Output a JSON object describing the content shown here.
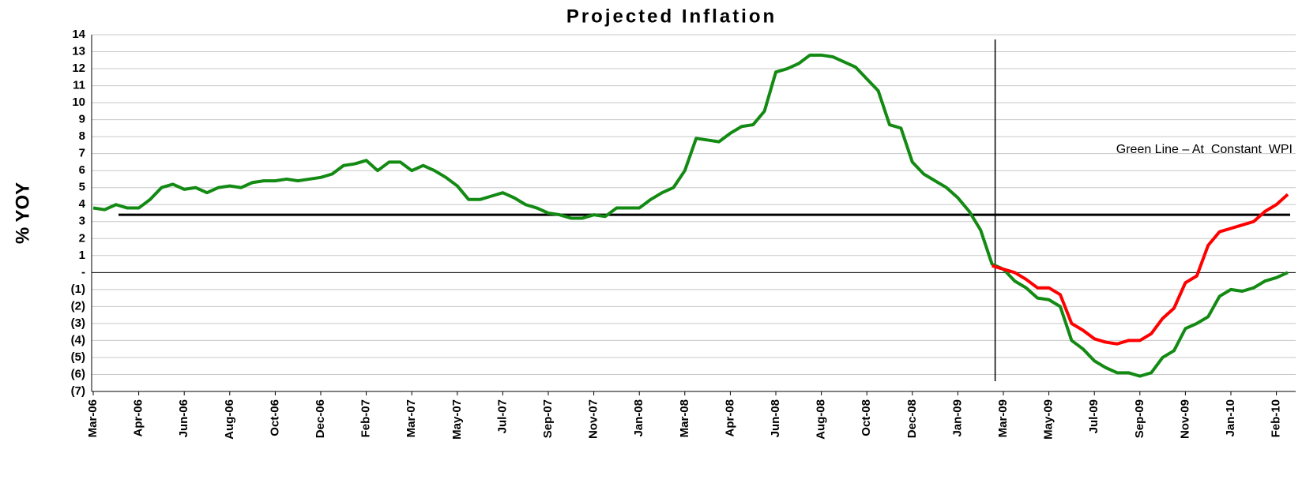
{
  "chart_data": {
    "type": "line",
    "title": "Projected Inflation",
    "y_label": "% YOY",
    "annotation": "Green Line – At  Constant  WPI",
    "categories": [
      "Mar-06",
      null,
      null,
      null,
      "Apr-06",
      null,
      null,
      null,
      "Jun-06",
      null,
      null,
      null,
      "Aug-06",
      null,
      null,
      null,
      "Oct-06",
      null,
      null,
      null,
      "Dec-06",
      null,
      null,
      null,
      "Feb-07",
      null,
      null,
      null,
      "Mar-07",
      null,
      null,
      null,
      "May-07",
      null,
      null,
      null,
      "Jul-07",
      null,
      null,
      null,
      "Sep-07",
      null,
      null,
      null,
      "Nov-07",
      null,
      null,
      null,
      "Jan-08",
      null,
      null,
      null,
      "Mar-08",
      null,
      null,
      null,
      "Apr-08",
      null,
      null,
      null,
      "Jun-08",
      null,
      null,
      null,
      "Aug-08",
      null,
      null,
      null,
      "Oct-08",
      null,
      null,
      null,
      "Dec-08",
      null,
      null,
      null,
      "Jan-09",
      null,
      null,
      null,
      "Mar-09",
      null,
      null,
      null,
      "May-09",
      null,
      null,
      null,
      "Jul-09",
      null,
      null,
      null,
      "Sep-09",
      null,
      null,
      null,
      "Nov-09",
      null,
      null,
      null,
      "Jan-10",
      null,
      null,
      null,
      "Feb-10",
      null
    ],
    "series": [
      {
        "name": "Green Line",
        "color": "#138a13",
        "values": [
          3.8,
          3.7,
          4.0,
          3.8,
          3.8,
          4.3,
          5.0,
          5.2,
          4.9,
          5.0,
          4.7,
          5.0,
          5.1,
          5.0,
          5.3,
          5.4,
          5.4,
          5.5,
          5.4,
          5.5,
          5.6,
          5.8,
          6.3,
          6.4,
          6.6,
          6.0,
          6.5,
          6.5,
          6.0,
          6.3,
          6.0,
          5.6,
          5.1,
          4.3,
          4.3,
          4.5,
          4.7,
          4.4,
          4.0,
          3.8,
          3.5,
          3.4,
          3.2,
          3.2,
          3.4,
          3.3,
          3.8,
          3.8,
          3.8,
          4.3,
          4.7,
          5.0,
          6.0,
          7.9,
          7.8,
          7.7,
          8.2,
          8.6,
          8.7,
          9.5,
          11.8,
          12.0,
          12.3,
          12.8,
          12.8,
          12.7,
          12.4,
          12.1,
          11.4,
          10.7,
          8.7,
          8.5,
          6.5,
          5.8,
          5.4,
          5.0,
          4.4,
          3.6,
          2.5,
          0.5,
          0.2,
          -0.5,
          -0.9,
          -1.5,
          -1.6,
          -2.0,
          -4.0,
          -4.5,
          -5.2,
          -5.6,
          -5.9,
          -5.9,
          -6.1,
          -5.9,
          -5.0,
          -4.6,
          -3.3,
          -3.0,
          -2.6,
          -1.4,
          -1.0,
          -1.1,
          -0.9,
          -0.5,
          -0.3,
          0.0
        ]
      },
      {
        "name": "Red Line",
        "color": "#ff0000",
        "values": [
          null,
          null,
          null,
          null,
          null,
          null,
          null,
          null,
          null,
          null,
          null,
          null,
          null,
          null,
          null,
          null,
          null,
          null,
          null,
          null,
          null,
          null,
          null,
          null,
          null,
          null,
          null,
          null,
          null,
          null,
          null,
          null,
          null,
          null,
          null,
          null,
          null,
          null,
          null,
          null,
          null,
          null,
          null,
          null,
          null,
          null,
          null,
          null,
          null,
          null,
          null,
          null,
          null,
          null,
          null,
          null,
          null,
          null,
          null,
          null,
          null,
          null,
          null,
          null,
          null,
          null,
          null,
          null,
          null,
          null,
          null,
          null,
          null,
          null,
          null,
          null,
          null,
          null,
          null,
          0.4,
          0.2,
          0.0,
          -0.4,
          -0.9,
          -0.9,
          -1.3,
          -3.0,
          -3.4,
          -3.9,
          -4.1,
          -4.2,
          -4.0,
          -4.0,
          -3.6,
          -2.7,
          -2.1,
          -0.6,
          -0.2,
          1.6,
          2.4,
          2.6,
          2.8,
          3.0,
          3.6,
          4.0,
          4.6
        ]
      }
    ],
    "ylim": [
      -7,
      14
    ],
    "yticks": [
      14,
      13,
      12,
      11,
      10,
      9,
      8,
      7,
      6,
      5,
      4,
      3,
      2,
      1,
      {
        "value": 0,
        "label": "-"
      },
      {
        "value": -1,
        "label": "(1)"
      },
      {
        "value": -2,
        "label": "(2)"
      },
      {
        "value": -3,
        "label": "(3)"
      },
      {
        "value": -4,
        "label": "(4)"
      },
      {
        "value": -5,
        "label": "(5)"
      },
      {
        "value": -6,
        "label": "(6)"
      },
      {
        "value": -7,
        "label": "(7)"
      }
    ],
    "grid": true,
    "reference_lines": [
      {
        "axis": "y",
        "value": 3.4
      },
      {
        "axis": "x",
        "value": 79
      }
    ]
  }
}
